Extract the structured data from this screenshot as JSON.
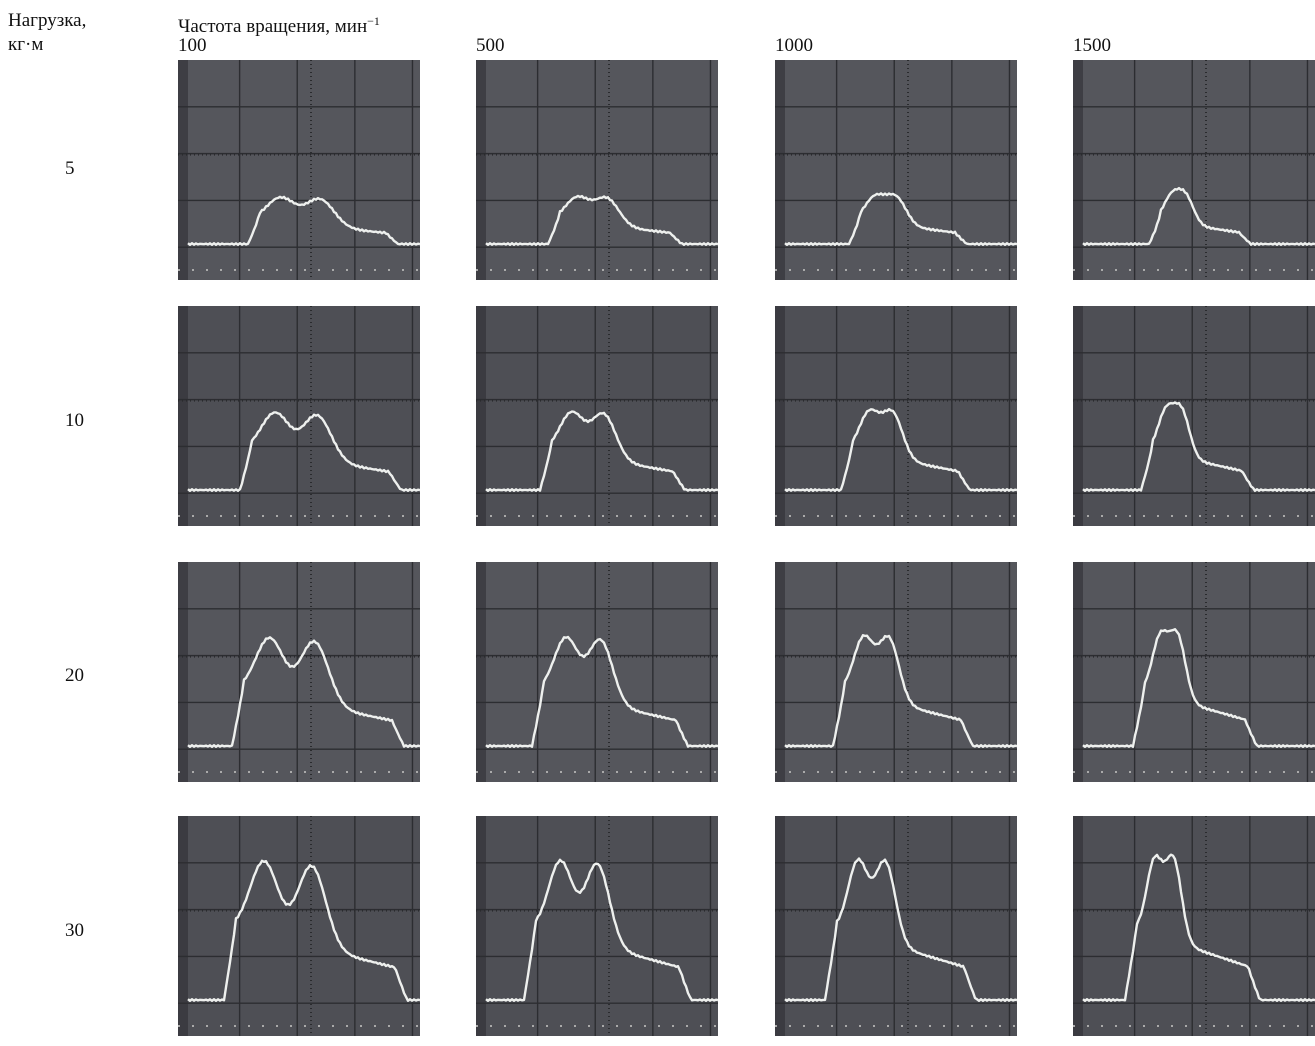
{
  "header": {
    "load_label_line1": "Нагрузка,",
    "load_label_line2": "кг·м",
    "speed_label": "Частота вращения, мин",
    "speed_label_exponent": "−1"
  },
  "columns": [
    "100",
    "500",
    "1000",
    "1500"
  ],
  "rows": [
    "5",
    "10",
    "20",
    "30"
  ]
}
